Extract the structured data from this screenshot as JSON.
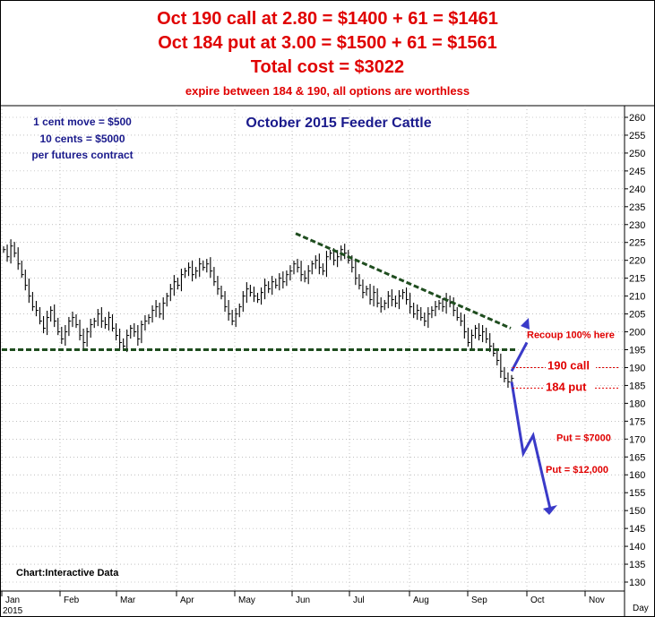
{
  "header": {
    "line1": "Oct 190 call at 2.80 = $1400 + 61 = $1461",
    "line2": "Oct 184 put at 3.00 = $1500 + 61 = $1561",
    "line3": "Total cost = $3022",
    "line4": "expire between 184 & 190, all options are worthless"
  },
  "chart_data": {
    "type": "bar",
    "title": "October 2015 Feeder Cattle",
    "notes": [
      "1 cent move = $500",
      "10 cents = $5000",
      "per futures contract"
    ],
    "credit": "Chart:Interactive Data",
    "ylim": [
      125,
      262
    ],
    "yticks": [
      130,
      135,
      140,
      145,
      150,
      155,
      160,
      165,
      170,
      175,
      180,
      185,
      190,
      195,
      200,
      205,
      210,
      215,
      220,
      225,
      230,
      235,
      240,
      245,
      250,
      255,
      260
    ],
    "months": [
      "Jan",
      "Feb",
      "Mar",
      "Apr",
      "May",
      "Jun",
      "Jul",
      "Aug",
      "Sep",
      "Oct",
      "Nov"
    ],
    "year_label": "2015",
    "x_unit_label": "Day",
    "closes": [
      223,
      221,
      224,
      222,
      219,
      216,
      213,
      210,
      207,
      206,
      203,
      201,
      204,
      206,
      203,
      200,
      198,
      200,
      203,
      204,
      202,
      199,
      197,
      200,
      202,
      203,
      205,
      203,
      202,
      204,
      201,
      199,
      197,
      196,
      199,
      201,
      200,
      198,
      202,
      203,
      204,
      206,
      207,
      205,
      208,
      210,
      212,
      214,
      213,
      216,
      217,
      218,
      216,
      217,
      219,
      218,
      219,
      217,
      214,
      212,
      210,
      207,
      205,
      203,
      205,
      207,
      210,
      212,
      211,
      210,
      209,
      211,
      213,
      212,
      214,
      213,
      215,
      214,
      216,
      217,
      219,
      218,
      216,
      215,
      217,
      219,
      220,
      218,
      217,
      221,
      222,
      220,
      221,
      223,
      222,
      220,
      218,
      215,
      213,
      211,
      212,
      209,
      211,
      208,
      207,
      208,
      210,
      209,
      208,
      210,
      211,
      209,
      207,
      205,
      206,
      204,
      203,
      205,
      206,
      207,
      208,
      207,
      209,
      208,
      206,
      204,
      203,
      200,
      197,
      199,
      201,
      199,
      200,
      198,
      196,
      194,
      192,
      189,
      187,
      186,
      187
    ],
    "support_line": 195,
    "trendline": [
      {
        "x": "Jun 1",
        "y": 227.5
      },
      {
        "x": "Sep 14",
        "y": 201
      }
    ],
    "annotations": [
      {
        "text": "Recoup 100% here",
        "level": 197
      },
      {
        "text": "190 call",
        "level": 190
      },
      {
        "text": "184 put",
        "level": 184
      },
      {
        "text": "Put = $7000",
        "level": 170
      },
      {
        "text": "Put = $12,000",
        "level": 161
      }
    ],
    "projection": [
      [
        186,
        191
      ],
      [
        188,
        197
      ],
      [
        177,
        188
      ],
      [
        170,
        166
      ],
      [
        174,
        170
      ],
      [
        181,
        150
      ]
    ]
  }
}
